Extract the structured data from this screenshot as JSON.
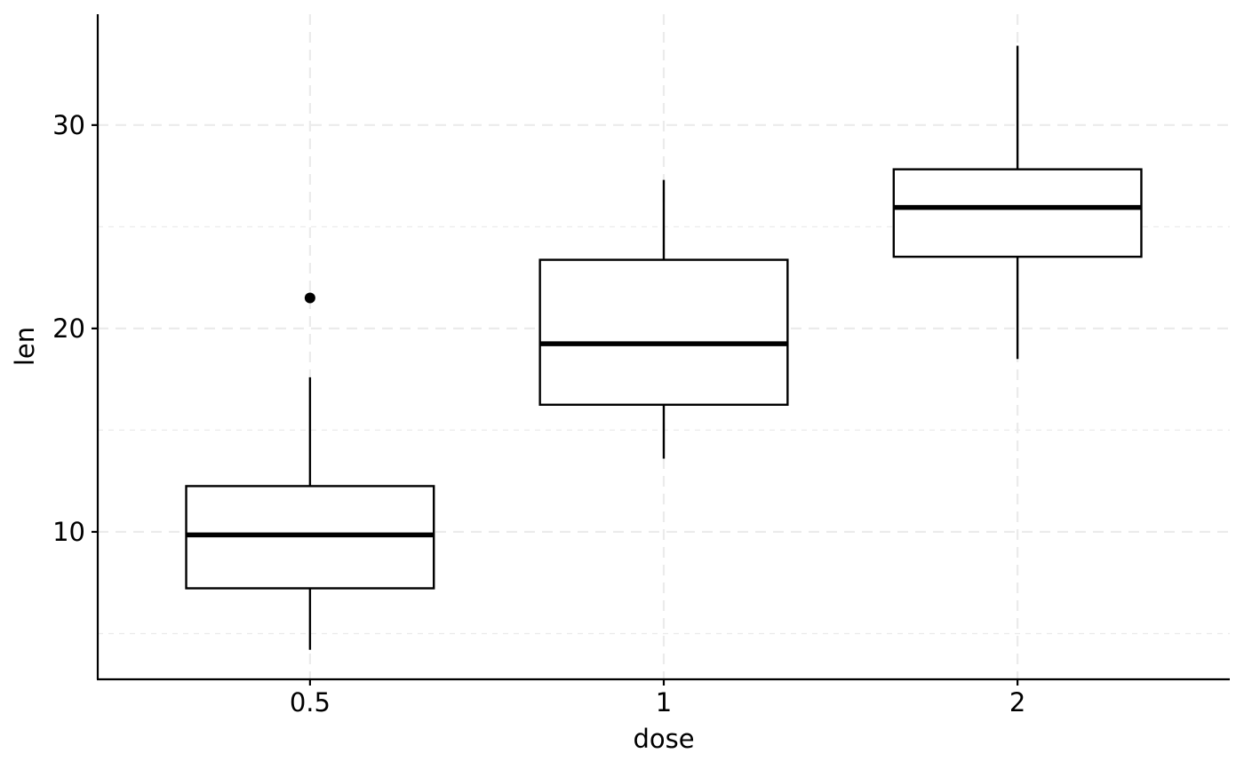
{
  "chart_data": {
    "type": "boxplot",
    "xlabel": "dose",
    "ylabel": "len",
    "categories": [
      "0.5",
      "1",
      "2"
    ],
    "y_ticks": [
      10,
      20,
      30
    ],
    "y_minor_ticks": [
      5,
      15,
      25
    ],
    "ylim": [
      2.75,
      35.45
    ],
    "grid": "dashed major and minor",
    "boxes": [
      {
        "category": "0.5",
        "min": 4.2,
        "q1": 7.225,
        "median": 9.85,
        "q3": 12.25,
        "max": 17.6,
        "outliers": [
          21.5
        ]
      },
      {
        "category": "1",
        "min": 13.6,
        "q1": 16.25,
        "median": 19.25,
        "q3": 23.375,
        "max": 27.3,
        "outliers": []
      },
      {
        "category": "2",
        "min": 18.5,
        "q1": 23.525,
        "median": 25.95,
        "q3": 27.825,
        "max": 33.9,
        "outliers": []
      }
    ]
  }
}
